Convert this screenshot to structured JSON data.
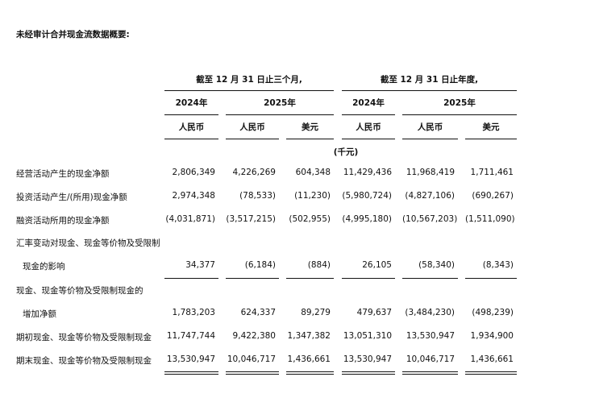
{
  "title": "未经审计合并现金流数据概要:",
  "groups": [
    "截至 12 月 31 日止三个月,",
    "截至 12 月 31 日止年度,"
  ],
  "years": [
    "2024年",
    "2025年",
    "2024年",
    "2025年"
  ],
  "currencies": [
    "人民币",
    "人民币",
    "美元",
    "人民币",
    "人民币",
    "美元"
  ],
  "unit": "(千元)",
  "rows": [
    {
      "label": "经营活动产生的现金净额",
      "values": [
        "2,806,349",
        "4,226,269",
        "604,348",
        "11,429,436",
        "11,968,419",
        "1,711,461"
      ]
    },
    {
      "label": "投资活动产生/(所用)现金净额",
      "values": [
        "2,974,348",
        "(78,533)",
        "(11,230)",
        "(5,980,724)",
        "(4,827,106)",
        "(690,267)"
      ]
    },
    {
      "label": "融资活动所用的现金净额",
      "values": [
        "(4,031,871)",
        "(3,517,215)",
        "(502,955)",
        "(4,995,180)",
        "(10,567,203)",
        "(1,511,090)"
      ]
    },
    {
      "label": "汇率变动对现金、现金等价物及受限制",
      "values": []
    },
    {
      "label": "现金的影响",
      "values": [
        "34,377",
        "(6,184)",
        "(884)",
        "26,105",
        "(58,340)",
        "(8,343)"
      ]
    },
    {
      "label": "现金、现金等价物及受限制现金的",
      "values": []
    },
    {
      "label": "增加净额",
      "values": [
        "1,783,203",
        "624,337",
        "89,279",
        "479,637",
        "(3,484,230)",
        "(498,239)"
      ]
    },
    {
      "label": "期初现金、现金等价物及受限制现金",
      "values": [
        "11,747,744",
        "9,422,380",
        "1,347,382",
        "13,051,310",
        "13,530,947",
        "1,934,900"
      ]
    },
    {
      "label": "期末现金、现金等价物及受限制现金",
      "values": [
        "13,530,947",
        "10,046,717",
        "1,436,661",
        "13,530,947",
        "10,046,717",
        "1,436,661"
      ]
    }
  ]
}
